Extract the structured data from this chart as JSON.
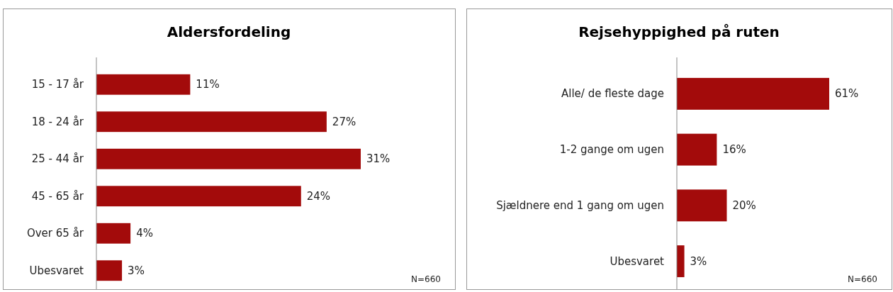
{
  "chart_data": [
    {
      "type": "bar",
      "orientation": "horizontal",
      "title": "Aldersfordeling",
      "categories": [
        "15 - 17 år",
        "18 - 24 år",
        "25 - 44 år",
        "45 - 65 år",
        "Over 65 år",
        "Ubesvaret"
      ],
      "values": [
        11,
        27,
        31,
        24,
        4,
        3
      ],
      "value_labels": [
        "11%",
        "27%",
        "31%",
        "24%",
        "4%",
        "3%"
      ],
      "color": "#a30b0b",
      "annotations": [
        "N=660"
      ]
    },
    {
      "type": "bar",
      "orientation": "horizontal",
      "title": "Rejsehyppighed på ruten",
      "categories": [
        "Alle/ de fleste dage",
        "1-2 gange om ugen",
        "Sjældnere end 1 gang om ugen",
        "Ubesvaret"
      ],
      "values": [
        61,
        16,
        20,
        3
      ],
      "value_labels": [
        "61%",
        "16%",
        "20%",
        "3%"
      ],
      "color": "#a30b0b",
      "annotations": [
        "N=660"
      ]
    }
  ]
}
